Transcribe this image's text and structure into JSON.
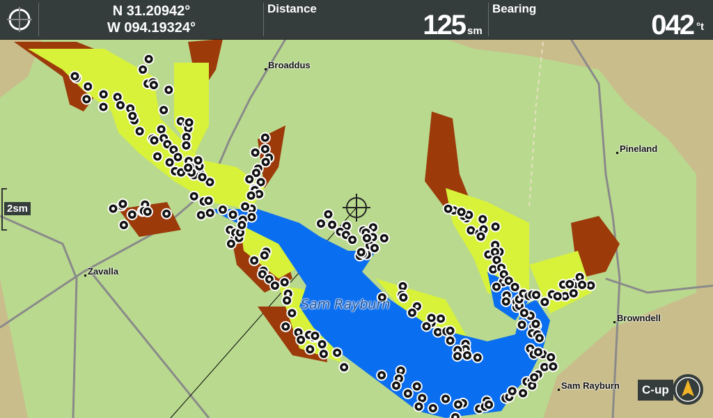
{
  "header": {
    "position": {
      "lat": "N 31.20942°",
      "lon": "W 094.19324°"
    },
    "distance": {
      "label": "Distance",
      "value": "125",
      "unit": "sm"
    },
    "bearing": {
      "label": "Bearing",
      "value": "042",
      "unit": "°t"
    }
  },
  "map": {
    "towns": [
      "Broaddus",
      "Pineland",
      "Zavalla",
      "Browndell",
      "Sam Rayburn"
    ],
    "lake_label": "Sam Rayburn",
    "scale": "2sm",
    "orientation": "C-up",
    "colors": {
      "land_green": "#b9d98e",
      "land_tan": "#c9bd8c",
      "deep_water": "#0a6ef0",
      "shallow": "#d8f23a",
      "flooded": "#9c3a0a",
      "road": "#8a8a8a"
    }
  },
  "icons": [
    "cursor-crosshair-icon",
    "waypoint-icon",
    "north-arrow-icon"
  ]
}
